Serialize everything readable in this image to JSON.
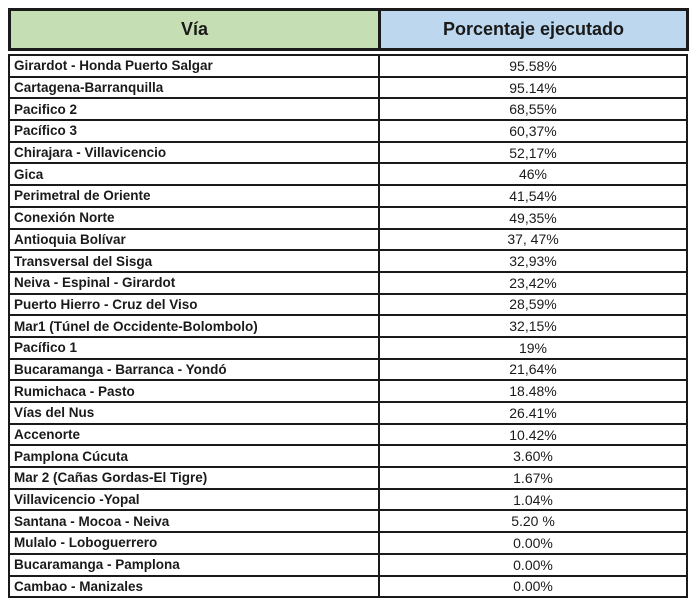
{
  "colors": {
    "header_via_bg": "#c6deb3",
    "header_pct_bg": "#bdd7ee",
    "border": "#1a1a1a"
  },
  "table": {
    "headers": [
      {
        "label": "Vía"
      },
      {
        "label": "Porcentaje ejecutado"
      }
    ],
    "rows": [
      {
        "via": "Girardot - Honda Puerto Salgar",
        "pct": "95.58%"
      },
      {
        "via": "Cartagena-Barranquilla",
        "pct": "95.14%"
      },
      {
        "via": "Pacifico 2",
        "pct": "68,55%"
      },
      {
        "via": "Pacífico 3",
        "pct": "60,37%"
      },
      {
        "via": "Chirajara - Villavicencio",
        "pct": "52,17%"
      },
      {
        "via": "Gica",
        "pct": "46%"
      },
      {
        "via": "Perimetral de Oriente",
        "pct": "41,54%"
      },
      {
        "via": "Conexión Norte",
        "pct": "49,35%"
      },
      {
        "via": "Antioquia Bolívar",
        "pct": "37, 47%"
      },
      {
        "via": "Transversal del Sisga",
        "pct": "32,93%"
      },
      {
        "via": "Neiva - Espinal - Girardot",
        "pct": "23,42%"
      },
      {
        "via": "Puerto Hierro - Cruz del Viso",
        "pct": "28,59%"
      },
      {
        "via": "Mar1 (Túnel de Occidente-Bolombolo)",
        "pct": "32,15%"
      },
      {
        "via": "Pacífico 1",
        "pct": "19%"
      },
      {
        "via": "Bucaramanga - Barranca - Yondó",
        "pct": "21,64%"
      },
      {
        "via": "Rumichaca - Pasto",
        "pct": "18.48%"
      },
      {
        "via": "Vías del Nus",
        "pct": "26.41%"
      },
      {
        "via": "Accenorte",
        "pct": "10.42%"
      },
      {
        "via": "Pamplona Cúcuta",
        "pct": "3.60%"
      },
      {
        "via": "Mar 2 (Cañas Gordas-El Tigre)",
        "pct": "1.67%"
      },
      {
        "via": "Villavicencio -Yopal",
        "pct": "1.04%"
      },
      {
        "via": "Santana - Mocoa - Neiva",
        "pct": "5.20 %"
      },
      {
        "via": "Mulalo - Loboguerrero",
        "pct": "0.00%"
      },
      {
        "via": "Bucaramanga - Pamplona",
        "pct": "0.00%"
      },
      {
        "via": "Cambao - Manizales",
        "pct": "0.00%"
      }
    ]
  },
  "chart_data": {
    "type": "table",
    "title": "",
    "columns": [
      "Vía",
      "Porcentaje ejecutado"
    ],
    "categories": [
      "Girardot - Honda Puerto Salgar",
      "Cartagena-Barranquilla",
      "Pacifico 2",
      "Pacífico 3",
      "Chirajara - Villavicencio",
      "Gica",
      "Perimetral de Oriente",
      "Conexión Norte",
      "Antioquia Bolívar",
      "Transversal del Sisga",
      "Neiva - Espinal - Girardot",
      "Puerto Hierro - Cruz del Viso",
      "Mar1 (Túnel de Occidente-Bolombolo)",
      "Pacífico 1",
      "Bucaramanga - Barranca - Yondó",
      "Rumichaca - Pasto",
      "Vías del Nus",
      "Accenorte",
      "Pamplona Cúcuta",
      "Mar 2 (Cañas Gordas-El Tigre)",
      "Villavicencio -Yopal",
      "Santana - Mocoa - Neiva",
      "Mulalo - Loboguerrero",
      "Bucaramanga - Pamplona",
      "Cambao - Manizales"
    ],
    "values": [
      95.58,
      95.14,
      68.55,
      60.37,
      52.17,
      46,
      41.54,
      49.35,
      37.47,
      32.93,
      23.42,
      28.59,
      32.15,
      19,
      21.64,
      18.48,
      26.41,
      10.42,
      3.6,
      1.67,
      1.04,
      5.2,
      0.0,
      0.0,
      0.0
    ],
    "value_unit": "%"
  }
}
